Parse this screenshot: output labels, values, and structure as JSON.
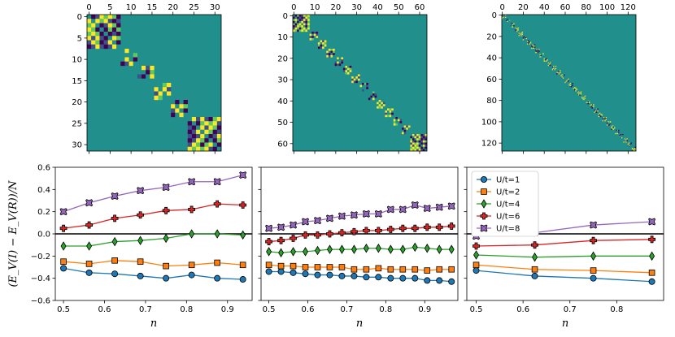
{
  "colors": {
    "mat_bg": "#21908c",
    "mat_pos": "#fde725",
    "mat_neg": "#440154",
    "mat_mid": "#3b528b",
    "mat_mid2": "#5ec962",
    "U1": "#1f77b4",
    "U2": "#ff7f0e",
    "U4": "#2ca02c",
    "U6": "#d62728",
    "U8": "#9467bd"
  },
  "matrices": [
    {
      "size": 32,
      "xticks": [
        "0",
        "5",
        "10",
        "15",
        "20",
        "25",
        "30"
      ],
      "tick_vals": [
        0,
        5,
        10,
        15,
        20,
        25,
        30
      ],
      "blocks": [
        [
          0,
          7
        ],
        [
          8,
          11
        ],
        [
          12,
          15
        ],
        [
          16,
          19
        ],
        [
          20,
          23
        ],
        [
          24,
          31
        ]
      ]
    },
    {
      "size": 64,
      "xticks": [
        "0",
        "10",
        "20",
        "30",
        "40",
        "50",
        "60"
      ],
      "tick_vals": [
        0,
        10,
        20,
        30,
        40,
        50,
        60
      ],
      "blocks": [
        [
          0,
          7
        ],
        [
          8,
          11
        ],
        [
          12,
          15
        ],
        [
          16,
          19
        ],
        [
          20,
          23
        ],
        [
          24,
          27
        ],
        [
          28,
          31
        ],
        [
          32,
          35
        ],
        [
          36,
          39
        ],
        [
          40,
          43
        ],
        [
          44,
          47
        ],
        [
          48,
          51
        ],
        [
          52,
          55
        ],
        [
          56,
          63
        ]
      ]
    },
    {
      "size": 128,
      "xticks": [
        "0",
        "20",
        "40",
        "60",
        "80",
        "100",
        "120"
      ],
      "tick_vals": [
        0,
        20,
        40,
        60,
        80,
        100,
        120
      ],
      "blocks": [
        [
          0,
          3
        ],
        [
          4,
          7
        ],
        [
          8,
          11
        ],
        [
          12,
          15
        ],
        [
          16,
          19
        ],
        [
          20,
          23
        ],
        [
          24,
          27
        ],
        [
          28,
          31
        ],
        [
          32,
          35
        ],
        [
          36,
          39
        ],
        [
          40,
          43
        ],
        [
          44,
          47
        ],
        [
          48,
          51
        ],
        [
          52,
          55
        ],
        [
          56,
          59
        ],
        [
          60,
          63
        ],
        [
          64,
          67
        ],
        [
          68,
          71
        ],
        [
          72,
          75
        ],
        [
          76,
          79
        ],
        [
          80,
          83
        ],
        [
          84,
          87
        ],
        [
          88,
          91
        ],
        [
          92,
          95
        ],
        [
          96,
          99
        ],
        [
          100,
          103
        ],
        [
          104,
          107
        ],
        [
          108,
          111
        ],
        [
          112,
          115
        ],
        [
          116,
          119
        ],
        [
          120,
          123
        ],
        [
          124,
          127
        ]
      ]
    }
  ],
  "chart_data": [
    {
      "type": "line",
      "xlabel": "n",
      "ylabel": "(E_V(I) − E_V(R))/N",
      "ylim": [
        -0.6,
        0.6
      ],
      "xlim": [
        0.48,
        0.96
      ],
      "yticks": [
        "−0.6",
        "−0.4",
        "−0.2",
        "0.0",
        "0.2",
        "0.4",
        "0.6"
      ],
      "ytick_vals": [
        -0.6,
        -0.4,
        -0.2,
        0.0,
        0.2,
        0.4,
        0.6
      ],
      "xticks": [
        "0.5",
        "0.6",
        "0.7",
        "0.8",
        "0.9"
      ],
      "xtick_vals": [
        0.5,
        0.6,
        0.7,
        0.8,
        0.9
      ],
      "x": [
        0.5,
        0.5625,
        0.625,
        0.6875,
        0.75,
        0.8125,
        0.875,
        0.9375
      ],
      "series": [
        {
          "name": "U/t=1",
          "values": [
            -0.31,
            -0.35,
            -0.36,
            -0.38,
            -0.4,
            -0.37,
            -0.4,
            -0.41
          ]
        },
        {
          "name": "U/t=2",
          "values": [
            -0.25,
            -0.27,
            -0.24,
            -0.25,
            -0.29,
            -0.28,
            -0.26,
            -0.28
          ]
        },
        {
          "name": "U/t=4",
          "values": [
            -0.11,
            -0.11,
            -0.07,
            -0.06,
            -0.04,
            0.0,
            0.0,
            -0.01
          ]
        },
        {
          "name": "U/t=6",
          "values": [
            0.05,
            0.08,
            0.14,
            0.17,
            0.21,
            0.22,
            0.27,
            0.26
          ]
        },
        {
          "name": "U/t=8",
          "values": [
            0.2,
            0.28,
            0.34,
            0.39,
            0.42,
            0.47,
            0.47,
            0.53
          ]
        }
      ]
    },
    {
      "type": "line",
      "xlabel": "n",
      "ylim": [
        -0.6,
        0.6
      ],
      "xlim": [
        0.48,
        0.985
      ],
      "xticks": [
        "0.5",
        "0.6",
        "0.7",
        "0.8",
        "0.9"
      ],
      "xtick_vals": [
        0.5,
        0.6,
        0.7,
        0.8,
        0.9
      ],
      "x": [
        0.5,
        0.53125,
        0.5625,
        0.59375,
        0.625,
        0.65625,
        0.6875,
        0.71875,
        0.75,
        0.78125,
        0.8125,
        0.84375,
        0.875,
        0.90625,
        0.9375,
        0.96875
      ],
      "series": [
        {
          "name": "U/t=1",
          "values": [
            -0.34,
            -0.34,
            -0.35,
            -0.36,
            -0.37,
            -0.37,
            -0.38,
            -0.38,
            -0.39,
            -0.39,
            -0.4,
            -0.4,
            -0.4,
            -0.42,
            -0.42,
            -0.43
          ]
        },
        {
          "name": "U/t=2",
          "values": [
            -0.28,
            -0.29,
            -0.29,
            -0.3,
            -0.3,
            -0.3,
            -0.3,
            -0.32,
            -0.32,
            -0.31,
            -0.32,
            -0.32,
            -0.32,
            -0.33,
            -0.32,
            -0.32
          ]
        },
        {
          "name": "U/t=4",
          "values": [
            -0.16,
            -0.17,
            -0.16,
            -0.16,
            -0.15,
            -0.14,
            -0.14,
            -0.14,
            -0.13,
            -0.13,
            -0.14,
            -0.14,
            -0.12,
            -0.13,
            -0.14,
            -0.14
          ]
        },
        {
          "name": "U/t=6",
          "values": [
            -0.07,
            -0.06,
            -0.04,
            -0.01,
            -0.01,
            0.0,
            0.01,
            0.02,
            0.03,
            0.03,
            0.04,
            0.05,
            0.05,
            0.06,
            0.06,
            0.07
          ]
        },
        {
          "name": "U/t=8",
          "values": [
            0.05,
            0.06,
            0.08,
            0.11,
            0.12,
            0.14,
            0.16,
            0.17,
            0.18,
            0.18,
            0.22,
            0.22,
            0.26,
            0.23,
            0.24,
            0.25
          ]
        }
      ]
    },
    {
      "type": "line",
      "xlabel": "n",
      "ylim": [
        -0.6,
        0.6
      ],
      "xlim": [
        0.48,
        0.9
      ],
      "xticks": [
        "0.5",
        "0.6",
        "0.7",
        "0.8"
      ],
      "xtick_vals": [
        0.5,
        0.6,
        0.7,
        0.8
      ],
      "x": [
        0.5,
        0.625,
        0.75,
        0.875
      ],
      "legend": "upper-left",
      "series": [
        {
          "name": "U/t=1",
          "values": [
            -0.33,
            -0.38,
            -0.4,
            -0.43
          ]
        },
        {
          "name": "U/t=2",
          "values": [
            -0.28,
            -0.32,
            -0.33,
            -0.35
          ]
        },
        {
          "name": "U/t=4",
          "values": [
            -0.19,
            -0.21,
            -0.2,
            -0.2
          ]
        },
        {
          "name": "U/t=6",
          "values": [
            -0.11,
            -0.1,
            -0.06,
            -0.05
          ]
        },
        {
          "name": "U/t=8",
          "values": [
            -0.02,
            0.01,
            0.08,
            0.11
          ]
        }
      ]
    }
  ],
  "legend_labels": [
    "U/t=1",
    "U/t=2",
    "U/t=4",
    "U/t=6",
    "U/t=8"
  ]
}
